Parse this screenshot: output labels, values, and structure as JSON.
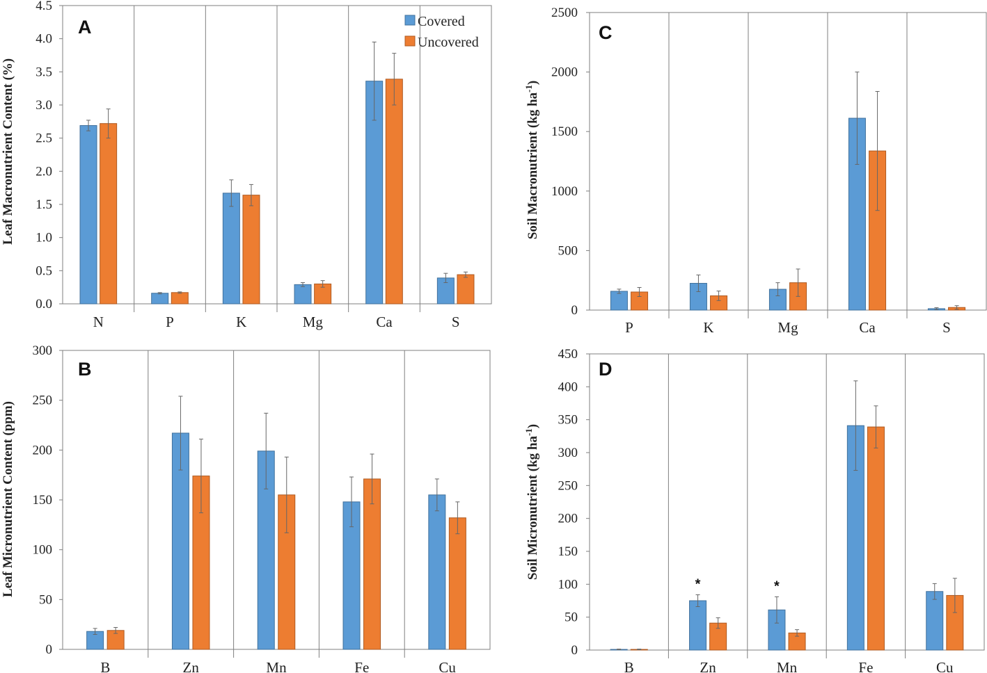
{
  "legend": {
    "covered": "Covered",
    "uncovered": "Uncovered",
    "covered_color": "#5b9bd5",
    "uncovered_color": "#ed7d31"
  },
  "chart_data": [
    {
      "panel": "A",
      "type": "bar",
      "ylabel": "Leaf Macronutrient Content (%)",
      "ylim": [
        0,
        4.5
      ],
      "yticks": [
        0,
        0.5,
        1,
        1.5,
        2,
        2.5,
        3,
        3.5,
        4,
        4.5
      ],
      "ytick_labels": [
        "0.0",
        "0.5",
        "1.0",
        "1.5",
        "2.0",
        "2.5",
        "3.0",
        "3.5",
        "4.0",
        "4.5"
      ],
      "categories": [
        "N",
        "P",
        "K",
        "Mg",
        "Ca",
        "S"
      ],
      "series": [
        {
          "name": "Covered",
          "values": [
            2.69,
            0.16,
            1.67,
            0.29,
            3.36,
            0.39
          ],
          "errors": [
            0.08,
            0.01,
            0.2,
            0.03,
            0.59,
            0.07
          ]
        },
        {
          "name": "Uncovered",
          "values": [
            2.72,
            0.17,
            1.64,
            0.3,
            3.39,
            0.44
          ],
          "errors": [
            0.22,
            0.01,
            0.16,
            0.05,
            0.39,
            0.04
          ]
        }
      ],
      "annotations": [],
      "legend": true
    },
    {
      "panel": "B",
      "type": "bar",
      "ylabel": "Leaf Micronutrient Content (ppm)",
      "ylim": [
        0,
        300
      ],
      "yticks": [
        0,
        50,
        100,
        150,
        200,
        250,
        300
      ],
      "ytick_labels": [
        "0",
        "50",
        "100",
        "150",
        "200",
        "250",
        "300"
      ],
      "categories": [
        "B",
        "Zn",
        "Mn",
        "Fe",
        "Cu"
      ],
      "series": [
        {
          "name": "Covered",
          "values": [
            18,
            217,
            199,
            148,
            155
          ],
          "errors": [
            3,
            37,
            38,
            25,
            16
          ]
        },
        {
          "name": "Uncovered",
          "values": [
            19,
            174,
            155,
            171,
            132
          ],
          "errors": [
            3,
            37,
            38,
            25,
            16
          ]
        }
      ],
      "annotations": [],
      "legend": false
    },
    {
      "panel": "C",
      "type": "bar",
      "ylabel_main": "Soil Macronutrient (kg ha",
      "ylabel_sup": "-1",
      "ylabel_end": ")",
      "ylim": [
        0,
        2500
      ],
      "yticks": [
        0,
        500,
        1000,
        1500,
        2000,
        2500
      ],
      "ytick_labels": [
        "0",
        "500",
        "1000",
        "1500",
        "2000",
        "2500"
      ],
      "categories": [
        "P",
        "K",
        "Mg",
        "Ca",
        "S"
      ],
      "series": [
        {
          "name": "Covered",
          "values": [
            158,
            225,
            175,
            1612,
            12
          ],
          "errors": [
            18,
            70,
            55,
            388,
            8
          ]
        },
        {
          "name": "Uncovered",
          "values": [
            152,
            120,
            230,
            1337,
            22
          ],
          "errors": [
            38,
            40,
            115,
            500,
            15
          ]
        }
      ],
      "annotations": [],
      "legend": false
    },
    {
      "panel": "D",
      "type": "bar",
      "ylabel_main": "Soil Micronutrient (kg ha",
      "ylabel_sup": "-1",
      "ylabel_end": ")",
      "ylim": [
        0,
        450
      ],
      "yticks": [
        0,
        50,
        100,
        150,
        200,
        250,
        300,
        350,
        400,
        450
      ],
      "ytick_labels": [
        "0",
        "50",
        "100",
        "150",
        "200",
        "250",
        "300",
        "350",
        "400",
        "450"
      ],
      "categories": [
        "B",
        "Zn",
        "Mn",
        "Fe",
        "Cu"
      ],
      "series": [
        {
          "name": "Covered",
          "values": [
            1,
            75,
            61,
            341,
            89
          ],
          "errors": [
            0.5,
            9,
            20,
            68,
            12
          ]
        },
        {
          "name": "Uncovered",
          "values": [
            1,
            41,
            26,
            339,
            83
          ],
          "errors": [
            0.5,
            8,
            5,
            32,
            26
          ]
        }
      ],
      "annotations": [
        {
          "category_index": 1,
          "text": "*"
        },
        {
          "category_index": 2,
          "text": "*"
        }
      ],
      "legend": false
    }
  ]
}
